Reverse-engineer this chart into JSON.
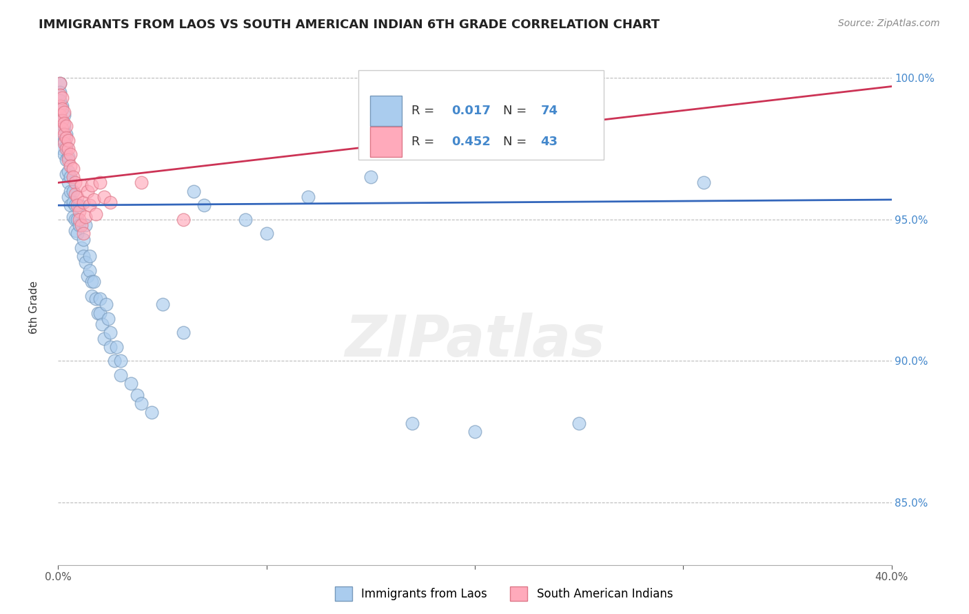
{
  "title": "IMMIGRANTS FROM LAOS VS SOUTH AMERICAN INDIAN 6TH GRADE CORRELATION CHART",
  "source": "Source: ZipAtlas.com",
  "ylabel": "6th Grade",
  "x_min": 0.0,
  "x_max": 0.4,
  "y_min": 0.828,
  "y_max": 1.008,
  "x_ticks": [
    0.0,
    0.1,
    0.2,
    0.3,
    0.4
  ],
  "x_tick_labels": [
    "0.0%",
    "",
    "",
    "",
    "40.0%"
  ],
  "y_ticks": [
    0.85,
    0.9,
    0.95,
    1.0
  ],
  "y_tick_labels": [
    "85.0%",
    "90.0%",
    "95.0%",
    "100.0%"
  ],
  "grid_color": "#bbbbbb",
  "background_color": "#ffffff",
  "blue_color": "#aaccee",
  "pink_color": "#ffaabb",
  "blue_edge": "#7799bb",
  "pink_edge": "#dd7788",
  "blue_line_color": "#3366bb",
  "pink_line_color": "#cc3355",
  "R_blue": 0.017,
  "N_blue": 74,
  "R_pink": 0.452,
  "N_pink": 43,
  "legend_label_blue": "Immigrants from Laos",
  "legend_label_pink": "South American Indians",
  "watermark": "ZIPatlas",
  "blue_scatter": [
    [
      0.001,
      0.998
    ],
    [
      0.001,
      0.995
    ],
    [
      0.001,
      0.992
    ],
    [
      0.001,
      0.988
    ],
    [
      0.002,
      0.99
    ],
    [
      0.002,
      0.985
    ],
    [
      0.002,
      0.98
    ],
    [
      0.002,
      0.975
    ],
    [
      0.003,
      0.987
    ],
    [
      0.003,
      0.983
    ],
    [
      0.003,
      0.978
    ],
    [
      0.003,
      0.973
    ],
    [
      0.004,
      0.98
    ],
    [
      0.004,
      0.976
    ],
    [
      0.004,
      0.971
    ],
    [
      0.004,
      0.966
    ],
    [
      0.005,
      0.972
    ],
    [
      0.005,
      0.967
    ],
    [
      0.005,
      0.963
    ],
    [
      0.005,
      0.958
    ],
    [
      0.006,
      0.965
    ],
    [
      0.006,
      0.96
    ],
    [
      0.006,
      0.955
    ],
    [
      0.007,
      0.96
    ],
    [
      0.007,
      0.956
    ],
    [
      0.007,
      0.951
    ],
    [
      0.008,
      0.955
    ],
    [
      0.008,
      0.95
    ],
    [
      0.008,
      0.946
    ],
    [
      0.009,
      0.95
    ],
    [
      0.009,
      0.945
    ],
    [
      0.01,
      0.955
    ],
    [
      0.01,
      0.948
    ],
    [
      0.011,
      0.94
    ],
    [
      0.012,
      0.937
    ],
    [
      0.012,
      0.943
    ],
    [
      0.013,
      0.948
    ],
    [
      0.013,
      0.935
    ],
    [
      0.014,
      0.93
    ],
    [
      0.015,
      0.937
    ],
    [
      0.015,
      0.932
    ],
    [
      0.016,
      0.928
    ],
    [
      0.016,
      0.923
    ],
    [
      0.017,
      0.928
    ],
    [
      0.018,
      0.922
    ],
    [
      0.019,
      0.917
    ],
    [
      0.02,
      0.922
    ],
    [
      0.02,
      0.917
    ],
    [
      0.021,
      0.913
    ],
    [
      0.022,
      0.908
    ],
    [
      0.023,
      0.92
    ],
    [
      0.024,
      0.915
    ],
    [
      0.025,
      0.91
    ],
    [
      0.025,
      0.905
    ],
    [
      0.027,
      0.9
    ],
    [
      0.028,
      0.905
    ],
    [
      0.03,
      0.9
    ],
    [
      0.03,
      0.895
    ],
    [
      0.035,
      0.892
    ],
    [
      0.038,
      0.888
    ],
    [
      0.04,
      0.885
    ],
    [
      0.045,
      0.882
    ],
    [
      0.05,
      0.92
    ],
    [
      0.06,
      0.91
    ],
    [
      0.065,
      0.96
    ],
    [
      0.07,
      0.955
    ],
    [
      0.09,
      0.95
    ],
    [
      0.1,
      0.945
    ],
    [
      0.12,
      0.958
    ],
    [
      0.15,
      0.965
    ],
    [
      0.17,
      0.878
    ],
    [
      0.2,
      0.875
    ],
    [
      0.25,
      0.878
    ],
    [
      0.31,
      0.963
    ]
  ],
  "pink_scatter": [
    [
      0.001,
      0.998
    ],
    [
      0.001,
      0.994
    ],
    [
      0.001,
      0.99
    ],
    [
      0.001,
      0.987
    ],
    [
      0.002,
      0.993
    ],
    [
      0.002,
      0.989
    ],
    [
      0.002,
      0.985
    ],
    [
      0.002,
      0.982
    ],
    [
      0.003,
      0.988
    ],
    [
      0.003,
      0.984
    ],
    [
      0.003,
      0.98
    ],
    [
      0.003,
      0.977
    ],
    [
      0.004,
      0.983
    ],
    [
      0.004,
      0.979
    ],
    [
      0.004,
      0.975
    ],
    [
      0.005,
      0.978
    ],
    [
      0.005,
      0.975
    ],
    [
      0.005,
      0.971
    ],
    [
      0.006,
      0.973
    ],
    [
      0.006,
      0.969
    ],
    [
      0.007,
      0.968
    ],
    [
      0.007,
      0.965
    ],
    [
      0.008,
      0.963
    ],
    [
      0.008,
      0.959
    ],
    [
      0.009,
      0.958
    ],
    [
      0.009,
      0.955
    ],
    [
      0.01,
      0.953
    ],
    [
      0.01,
      0.95
    ],
    [
      0.011,
      0.962
    ],
    [
      0.011,
      0.948
    ],
    [
      0.012,
      0.956
    ],
    [
      0.012,
      0.945
    ],
    [
      0.013,
      0.951
    ],
    [
      0.014,
      0.96
    ],
    [
      0.015,
      0.955
    ],
    [
      0.016,
      0.962
    ],
    [
      0.017,
      0.957
    ],
    [
      0.018,
      0.952
    ],
    [
      0.02,
      0.963
    ],
    [
      0.022,
      0.958
    ],
    [
      0.025,
      0.956
    ],
    [
      0.04,
      0.963
    ],
    [
      0.06,
      0.95
    ]
  ],
  "blue_trend_x": [
    0.0,
    0.4
  ],
  "blue_trend_y": [
    0.955,
    0.957
  ],
  "pink_trend_x": [
    0.0,
    0.4
  ],
  "pink_trend_y": [
    0.963,
    0.997
  ]
}
